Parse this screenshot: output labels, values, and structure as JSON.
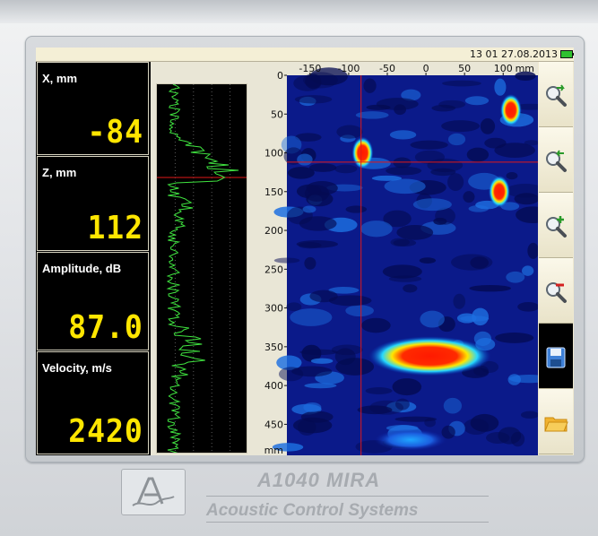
{
  "status": {
    "datetime": "13 01 27.08.2013"
  },
  "readouts": [
    {
      "label": "X, mm",
      "value": "-84"
    },
    {
      "label": "Z, mm",
      "value": "112"
    },
    {
      "label": "Amplitude, dB",
      "value": "87.0"
    },
    {
      "label": "Velocity, m/s",
      "value": "2420"
    }
  ],
  "plot": {
    "x_unit": "mm",
    "y_unit": "mm",
    "x_ticks": [
      "-150",
      "-100",
      "-50",
      "0",
      "50",
      "100"
    ],
    "y_ticks": [
      "0",
      "50",
      "100",
      "150",
      "200",
      "250",
      "300",
      "350",
      "400",
      "450"
    ],
    "x_range": [
      -180,
      145
    ],
    "y_range": [
      0,
      490
    ],
    "cursor": {
      "x": -84,
      "z": 112
    },
    "reflectors": [
      {
        "x": -82,
        "z": 100,
        "level": 1.0
      },
      {
        "x": 110,
        "z": 45,
        "level": 0.9
      },
      {
        "x": 95,
        "z": 150,
        "level": 0.95
      },
      {
        "x": 5,
        "z": 362,
        "level": 1.0
      }
    ]
  },
  "toolbar": [
    {
      "icon": "zoom-reset-icon"
    },
    {
      "icon": "zoom-back-icon"
    },
    {
      "icon": "zoom-in-icon"
    },
    {
      "icon": "zoom-out-icon"
    },
    {
      "icon": "save-icon"
    },
    {
      "icon": "open-folder-icon"
    }
  ],
  "brand": {
    "model": "A1040 MIRA",
    "company": "Acoustic Control Systems"
  }
}
